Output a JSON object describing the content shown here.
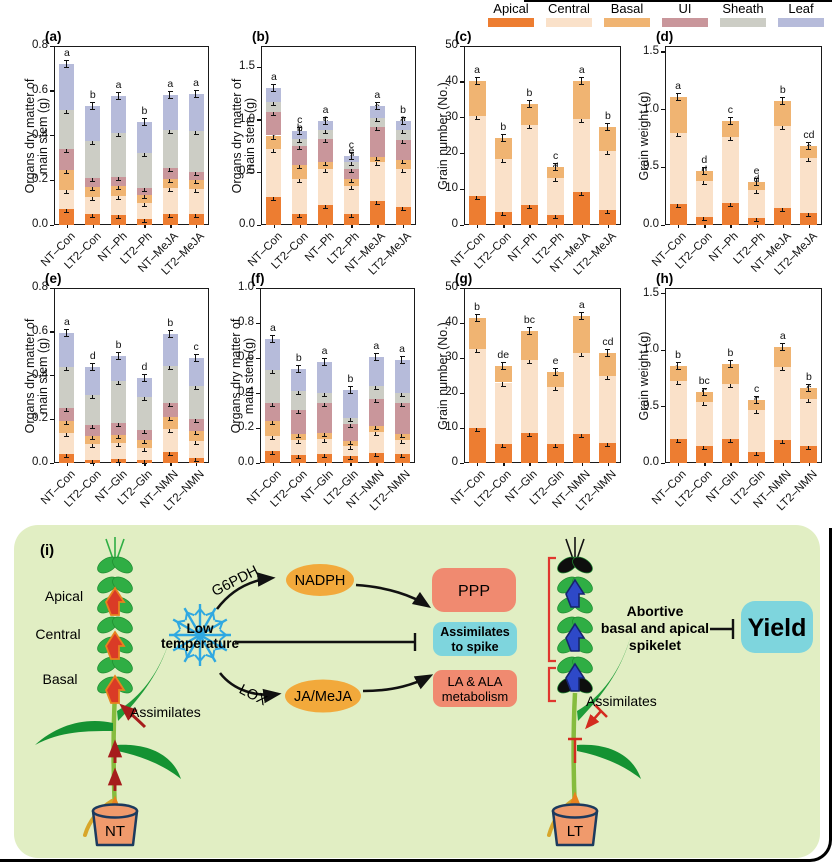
{
  "legend": {
    "items": [
      {
        "label": "Apical",
        "color": "#ED7D31"
      },
      {
        "label": "Central",
        "color": "#FAE1C9"
      },
      {
        "label": "Basal",
        "color": "#F0B472"
      },
      {
        "label": "UI",
        "color": "#C9969B"
      },
      {
        "label": "Sheath",
        "color": "#CCCDC5"
      },
      {
        "label": "Leaf",
        "color": "#B6BBDA"
      }
    ]
  },
  "chart_data": [
    {
      "id": "a",
      "panel_label": "(a)",
      "type": "stacked-bar",
      "ylabel_lines": [
        "Organs dry matter of",
        "main stem (g)"
      ],
      "ylim": [
        0,
        0.8
      ],
      "ytick_vals": [
        0,
        0.2,
        0.4,
        0.6,
        0.8
      ],
      "ytick_labels": [
        "0.0",
        "0.2",
        "0.4",
        "0.6",
        "0.8"
      ],
      "segments": [
        "Apical",
        "Central",
        "Basal",
        "UI",
        "Sheath",
        "Leaf"
      ],
      "categories": [
        "NT–Con",
        "LT2–Con",
        "NT–Ph",
        "LT2–Ph",
        "NT–MeJA",
        "LT2–MeJA"
      ],
      "bars": [
        {
          "values": [
            0.07,
            0.085,
            0.09,
            0.095,
            0.175,
            0.205
          ],
          "letters": [
            "a",
            "a",
            "a",
            "a",
            "a",
            "a"
          ]
        },
        {
          "values": [
            0.048,
            0.075,
            0.047,
            0.04,
            0.165,
            0.155
          ],
          "letters": [
            "b",
            "c",
            "c",
            "c",
            "b",
            "b"
          ]
        },
        {
          "values": [
            0.045,
            0.085,
            0.045,
            0.04,
            0.195,
            0.165
          ],
          "letters": [
            "b",
            "c",
            "a",
            "bc",
            "c",
            "a"
          ]
        },
        {
          "values": [
            0.025,
            0.075,
            0.035,
            0.03,
            0.155,
            0.14
          ],
          "letters": [
            "c",
            "c",
            "c",
            "d",
            "c",
            "b"
          ]
        },
        {
          "values": [
            0.05,
            0.115,
            0.04,
            0.05,
            0.17,
            0.155
          ],
          "letters": [
            "b",
            "b",
            "b",
            "c",
            "b",
            "a"
          ]
        },
        {
          "values": [
            0.05,
            0.11,
            0.04,
            0.035,
            0.185,
            0.165
          ],
          "letters": [
            "b",
            "b",
            "b",
            "bc",
            "b",
            "a"
          ]
        }
      ]
    },
    {
      "id": "b",
      "panel_label": "(b)",
      "type": "stacked-bar",
      "ylabel_lines": [
        "Organs dry matter of",
        "main stem (g)"
      ],
      "ylim": [
        0,
        1.7
      ],
      "ytick_vals": [
        0,
        0.5,
        1.0,
        1.5
      ],
      "ytick_labels": [
        "0.0",
        "0.5",
        "1.0",
        "1.5"
      ],
      "segments": [
        "Apical",
        "Central",
        "Basal",
        "UI",
        "Sheath",
        "Leaf"
      ],
      "categories": [
        "NT–Con",
        "LT2–Con",
        "NT–Ph",
        "LT2–Ph",
        "NT–MeJA",
        "LT2–MeJA"
      ],
      "bars": [
        {
          "values": [
            0.27,
            0.45,
            0.13,
            0.22,
            0.1,
            0.13
          ],
          "letters": [
            "a",
            "a",
            "a",
            "a",
            "a",
            "a"
          ]
        },
        {
          "values": [
            0.1,
            0.34,
            0.13,
            0.18,
            0.07,
            0.07
          ],
          "letters": [
            "e",
            "b",
            "e",
            "d",
            "b",
            "c"
          ]
        },
        {
          "values": [
            0.19,
            0.34,
            0.07,
            0.22,
            0.08,
            0.09
          ],
          "letters": [
            "c",
            "c",
            "d",
            "c",
            "c",
            "a"
          ]
        },
        {
          "values": [
            0.1,
            0.27,
            0.07,
            0.09,
            0.07,
            0.06
          ],
          "letters": [
            "e",
            "e",
            "e",
            "d",
            "e",
            "c"
          ]
        },
        {
          "values": [
            0.23,
            0.37,
            0.05,
            0.28,
            0.09,
            0.11
          ],
          "letters": [
            "b",
            "c",
            "c",
            "b",
            "a",
            "a"
          ]
        },
        {
          "values": [
            0.17,
            0.36,
            0.09,
            0.19,
            0.09,
            0.09
          ],
          "letters": [
            "d",
            "c",
            "c",
            "c",
            "a",
            "b"
          ]
        }
      ]
    },
    {
      "id": "c",
      "panel_label": "(c)",
      "type": "stacked-bar",
      "ylabel_lines": [
        "Grain number (No.)"
      ],
      "ylim": [
        0,
        50
      ],
      "ytick_vals": [
        0,
        10,
        20,
        30,
        40,
        50
      ],
      "ytick_labels": [
        "0",
        "10",
        "20",
        "30",
        "40",
        "50"
      ],
      "segments": [
        "Apical",
        "Central",
        "Basal"
      ],
      "categories": [
        "NT–Con",
        "LT2–Con",
        "NT–Ph",
        "LT2–Ph",
        "NT–MeJA",
        "LT2–MeJA"
      ],
      "bars": [
        {
          "values": [
            8.2,
            22.3,
            9.8
          ],
          "letters": [
            "a",
            "a",
            "a"
          ]
        },
        {
          "values": [
            3.5,
            15.0,
            5.8
          ],
          "letters": [
            "c",
            "c",
            "b"
          ]
        },
        {
          "values": [
            5.5,
            22.3,
            6.0
          ],
          "letters": [
            "b",
            "ab",
            "b"
          ]
        },
        {
          "values": [
            2.8,
            10.2,
            3.2
          ],
          "letters": [
            "c",
            "d",
            "c"
          ]
        },
        {
          "values": [
            9.2,
            20.3,
            10.7
          ],
          "letters": [
            "a",
            "b",
            "a"
          ]
        },
        {
          "values": [
            4.2,
            16.6,
            6.7
          ],
          "letters": [
            "bc",
            "c",
            "b"
          ]
        }
      ]
    },
    {
      "id": "d",
      "panel_label": "(d)",
      "type": "stacked-bar",
      "ylabel_lines": [
        "Grain weight (g)"
      ],
      "ylim": [
        0,
        1.55
      ],
      "ytick_vals": [
        0,
        0.5,
        1.0,
        1.5
      ],
      "ytick_labels": [
        "0.0",
        "0.5",
        "1.0",
        "1.5"
      ],
      "segments": [
        "Apical",
        "Central",
        "Basal"
      ],
      "categories": [
        "NT–Con",
        "LT2–Con",
        "NT–Ph",
        "LT2–Ph",
        "NT–MeJA",
        "LT2–MeJA"
      ],
      "bars": [
        {
          "values": [
            0.18,
            0.62,
            0.31
          ],
          "letters": [
            "a",
            "b",
            "a"
          ]
        },
        {
          "values": [
            0.07,
            0.31,
            0.09
          ],
          "letters": [
            "d",
            "d",
            "d"
          ]
        },
        {
          "values": [
            0.19,
            0.57,
            0.14
          ],
          "letters": [
            "a",
            "b",
            "c"
          ]
        },
        {
          "values": [
            0.06,
            0.24,
            0.07
          ],
          "letters": [
            "d",
            "d",
            "e"
          ]
        },
        {
          "values": [
            0.15,
            0.71,
            0.21
          ],
          "letters": [
            "b",
            "a",
            "b"
          ]
        },
        {
          "values": [
            0.1,
            0.48,
            0.1
          ],
          "letters": [
            "c",
            "c",
            "cd"
          ]
        }
      ]
    },
    {
      "id": "e",
      "panel_label": "(e)",
      "type": "stacked-bar",
      "ylabel_lines": [
        "Organs dry matter of",
        "main stem (g)"
      ],
      "ylim": [
        0,
        0.8
      ],
      "ytick_vals": [
        0,
        0.2,
        0.4,
        0.6,
        0.8
      ],
      "ytick_labels": [
        "0.0",
        "0.2",
        "0.4",
        "0.6",
        "0.8"
      ],
      "segments": [
        "Apical",
        "Central",
        "Basal",
        "UI",
        "Sheath",
        "Leaf"
      ],
      "categories": [
        "NT–Con",
        "LT2–Con",
        "NT–Gln",
        "LT2–Gln",
        "NT–NMN",
        "LT2–NMN"
      ],
      "bars": [
        {
          "values": [
            0.04,
            0.095,
            0.055,
            0.06,
            0.19,
            0.155
          ],
          "letters": [
            "b",
            "ab",
            "a",
            "a",
            "a",
            "a"
          ]
        },
        {
          "values": [
            0.015,
            0.07,
            0.04,
            0.05,
            0.135,
            0.13
          ],
          "letters": [
            "cd",
            "de",
            "b",
            "b",
            "c",
            "d"
          ]
        },
        {
          "values": [
            0.02,
            0.07,
            0.04,
            0.055,
            0.19,
            0.115
          ],
          "letters": [
            "d",
            "bc",
            "b",
            "b",
            "b",
            "b"
          ]
        },
        {
          "values": [
            0.012,
            0.058,
            0.035,
            0.045,
            0.15,
            0.09
          ],
          "letters": [
            "e",
            "e",
            "c",
            "c",
            "c",
            "d"
          ]
        },
        {
          "values": [
            0.05,
            0.105,
            0.055,
            0.065,
            0.17,
            0.145
          ],
          "letters": [
            "a",
            "a",
            "a",
            "a",
            "a",
            "b"
          ]
        },
        {
          "values": [
            0.022,
            0.078,
            0.045,
            0.055,
            0.15,
            0.13
          ],
          "letters": [
            "c",
            "cd",
            "b",
            "b",
            "b",
            "c"
          ]
        }
      ]
    },
    {
      "id": "f",
      "panel_label": "(f)",
      "type": "stacked-bar",
      "ylabel_lines": [
        "Organs dry matter of",
        "main stem (g)"
      ],
      "ylim": [
        0,
        1.0
      ],
      "ytick_vals": [
        0,
        0.2,
        0.4,
        0.6,
        0.8,
        1.0
      ],
      "ytick_labels": [
        "0.0",
        "0.2",
        "0.4",
        "0.6",
        "0.8",
        "1.0"
      ],
      "segments": [
        "Apical",
        "Central",
        "Basal",
        "UI",
        "Sheath",
        "Leaf"
      ],
      "categories": [
        "NT–Con",
        "LT2–Con",
        "NT–Gln",
        "LT2–Gln",
        "NT–NMN",
        "LT2–NMN"
      ],
      "bars": [
        {
          "values": [
            0.07,
            0.085,
            0.085,
            0.105,
            0.185,
            0.18
          ],
          "letters": [
            "a",
            "a",
            "a",
            "a",
            "a",
            "a"
          ]
        },
        {
          "values": [
            0.045,
            0.085,
            0.035,
            0.14,
            0.105,
            0.125
          ],
          "letters": [
            "cd",
            "b",
            "c",
            "c",
            "c",
            "b"
          ]
        },
        {
          "values": [
            0.05,
            0.085,
            0.035,
            0.175,
            0.055,
            0.175
          ],
          "letters": [
            "cd",
            "c",
            "c",
            "b",
            "bc",
            "a"
          ]
        },
        {
          "values": [
            0.04,
            0.055,
            0.03,
            0.1,
            0.035,
            0.16
          ],
          "letters": [
            "d",
            "c",
            "bc",
            "d",
            "d",
            "b"
          ]
        },
        {
          "values": [
            0.055,
            0.12,
            0.035,
            0.155,
            0.075,
            0.165
          ],
          "letters": [
            "b",
            "bc",
            "b",
            "a",
            "bc",
            "a"
          ]
        },
        {
          "values": [
            0.05,
            0.08,
            0.035,
            0.18,
            0.055,
            0.19
          ],
          "letters": [
            "bc",
            "c",
            "b",
            "a",
            "c",
            "a"
          ]
        }
      ]
    },
    {
      "id": "g",
      "panel_label": "(g)",
      "type": "stacked-bar",
      "ylabel_lines": [
        "Grain number (No.)"
      ],
      "ylim": [
        0,
        50
      ],
      "ytick_vals": [
        0,
        10,
        20,
        30,
        40,
        50
      ],
      "ytick_labels": [
        "0",
        "10",
        "20",
        "30",
        "40",
        "50"
      ],
      "segments": [
        "Apical",
        "Central",
        "Basal"
      ],
      "categories": [
        "NT–Con",
        "LT2–Con",
        "NT–Gln",
        "LT2–Gln",
        "NT–NMN",
        "LT2–NMN"
      ],
      "bars": [
        {
          "values": [
            10.0,
            22.5,
            9.0
          ],
          "letters": [
            "a",
            "a",
            "b"
          ]
        },
        {
          "values": [
            5.3,
            17.7,
            4.7
          ],
          "letters": [
            "b",
            "cd",
            "de"
          ]
        },
        {
          "values": [
            8.5,
            21.0,
            8.3
          ],
          "letters": [
            "a",
            "ab",
            "bc"
          ]
        },
        {
          "values": [
            5.4,
            16.4,
            4.2
          ],
          "letters": [
            "b",
            "d",
            "e"
          ]
        },
        {
          "values": [
            8.2,
            23.3,
            10.5
          ],
          "letters": [
            "a",
            "a",
            "a"
          ]
        },
        {
          "values": [
            5.8,
            19.0,
            6.7
          ],
          "letters": [
            "b",
            "bc",
            "cd"
          ]
        }
      ]
    },
    {
      "id": "h",
      "panel_label": "(h)",
      "type": "stacked-bar",
      "ylabel_lines": [
        "Grain weight (g)"
      ],
      "ylim": [
        0,
        1.55
      ],
      "ytick_vals": [
        0,
        0.5,
        1.0,
        1.5
      ],
      "ytick_labels": [
        "0.0",
        "0.5",
        "1.0",
        "1.5"
      ],
      "segments": [
        "Apical",
        "Central",
        "Basal"
      ],
      "categories": [
        "NT–Con",
        "LT2–Con",
        "NT–Gln",
        "LT2–Gln",
        "NT–NMN",
        "LT2–NMN"
      ],
      "bars": [
        {
          "values": [
            0.21,
            0.52,
            0.13
          ],
          "letters": [
            "a",
            "b",
            "b"
          ]
        },
        {
          "values": [
            0.15,
            0.39,
            0.09
          ],
          "letters": [
            "b",
            "c",
            "bc"
          ]
        },
        {
          "values": [
            0.21,
            0.49,
            0.18
          ],
          "letters": [
            "a",
            "b",
            "b"
          ]
        },
        {
          "values": [
            0.1,
            0.37,
            0.09
          ],
          "letters": [
            "c",
            "c",
            "c"
          ]
        },
        {
          "values": [
            0.2,
            0.65,
            0.18
          ],
          "letters": [
            "a",
            "a",
            "a"
          ]
        },
        {
          "values": [
            0.15,
            0.42,
            0.09
          ],
          "letters": [
            "b",
            "c",
            "b"
          ]
        }
      ]
    }
  ],
  "diagram": {
    "panel_label": "(i)",
    "left_plant": {
      "apical": "Apical",
      "central": "Central",
      "basal": "Basal",
      "assimilates": "Assimilates",
      "pot": "NT"
    },
    "right_plant": {
      "assimilates": "Assimilates",
      "pot": "LT"
    },
    "snowflake_lines": [
      "Low",
      "temperature"
    ],
    "g6pdh": "G6PDH",
    "lox": "LOX",
    "nadph": "NADPH",
    "jameja": "JA/MeJA",
    "ppp": "PPP",
    "assim_spike": [
      "Assimilates",
      "to spike"
    ],
    "la_ala": [
      "LA &  ALA",
      "metabolism"
    ],
    "abortive": [
      "Abortive",
      "basal and apical",
      "spikelet"
    ],
    "yield": "Yield",
    "colors": {
      "bg": "#E1EEC3",
      "ellipse": "#F2A93B",
      "salmon": "#F08A70",
      "cyan": "#7ED5DD",
      "snow": "#2FA8E1",
      "bracket": "#E0362E"
    }
  }
}
